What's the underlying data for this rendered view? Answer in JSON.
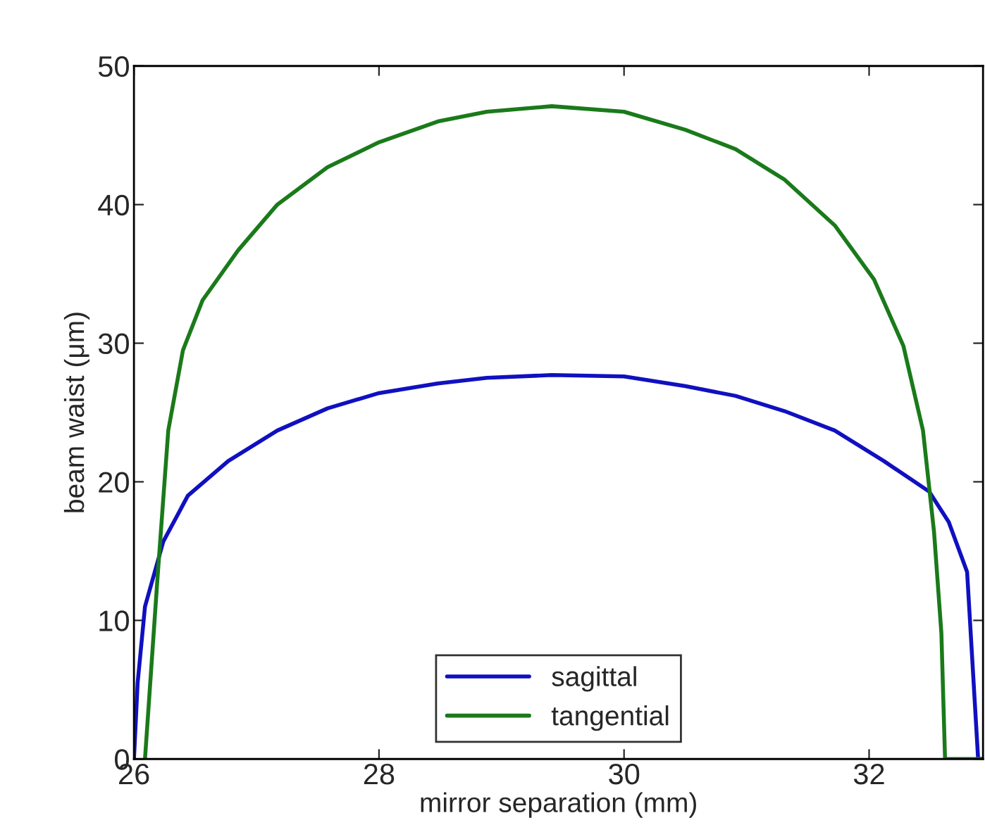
{
  "chart_data": {
    "type": "line",
    "xlabel": "mirror separation (mm)",
    "ylabel": "beam waist (μm)",
    "xlim": [
      26,
      32.93
    ],
    "xticks": [
      26,
      28,
      30,
      32
    ],
    "ylim": [
      0,
      50
    ],
    "yticks": [
      0,
      10,
      20,
      30,
      40,
      50
    ],
    "grid": false,
    "legend": "bottom",
    "line_style": "solid",
    "marker": "none",
    "series": [
      {
        "name": "sagittal",
        "color": "#1010c0",
        "x": [
          26.0,
          26.03,
          26.09,
          26.24,
          26.44,
          26.77,
          27.17,
          27.58,
          28.0,
          28.48,
          28.88,
          29.41,
          30.0,
          30.5,
          30.91,
          31.31,
          31.72,
          32.12,
          32.49,
          32.65,
          32.8,
          32.89,
          32.93
        ],
        "values": [
          0,
          5.5,
          11,
          15.7,
          19,
          21.5,
          23.7,
          25.3,
          26.4,
          27.1,
          27.5,
          27.7,
          27.6,
          26.9,
          26.2,
          25.1,
          23.7,
          21.5,
          19.3,
          17.1,
          13.5,
          0,
          0
        ]
      },
      {
        "name": "tangential",
        "color": "#1a7a1a",
        "x": [
          26.09,
          26.19,
          26.28,
          26.4,
          26.56,
          26.85,
          27.17,
          27.58,
          28.0,
          28.48,
          28.88,
          29.41,
          30.0,
          30.5,
          30.91,
          31.31,
          31.72,
          32.04,
          32.28,
          32.44,
          32.53,
          32.59,
          32.62,
          32.93
        ],
        "values": [
          0,
          12.8,
          23.7,
          29.5,
          33.1,
          36.7,
          40,
          42.7,
          44.5,
          46,
          46.7,
          47.1,
          46.7,
          45.4,
          44,
          41.8,
          38.5,
          34.6,
          29.8,
          23.7,
          16.4,
          9.1,
          0,
          0
        ]
      }
    ]
  }
}
